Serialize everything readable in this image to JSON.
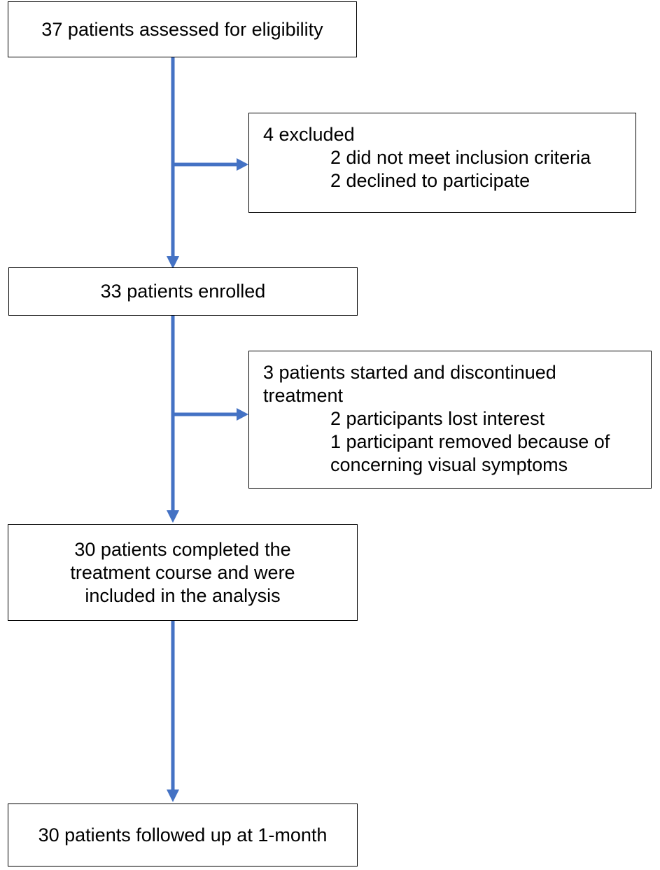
{
  "nodes": {
    "assessed": {
      "text": "37 patients assessed for eligibility"
    },
    "excluded": {
      "heading": "4 excluded",
      "items": [
        "2 did not meet inclusion criteria",
        "2 declined to participate"
      ]
    },
    "enrolled": {
      "text": "33 patients enrolled"
    },
    "discontinued": {
      "heading_lines": [
        "3 patients started and discontinued",
        "treatment"
      ],
      "items": [
        "2 participants lost interest",
        "1 participant removed because of",
        "concerning visual symptoms"
      ]
    },
    "completed": {
      "lines": [
        "30 patients completed the",
        "treatment course and were",
        "included in the analysis"
      ]
    },
    "followed_up": {
      "text": "30 patients followed up at 1-month"
    }
  },
  "colors": {
    "arrow": "#4472C4",
    "border": "#000000"
  }
}
